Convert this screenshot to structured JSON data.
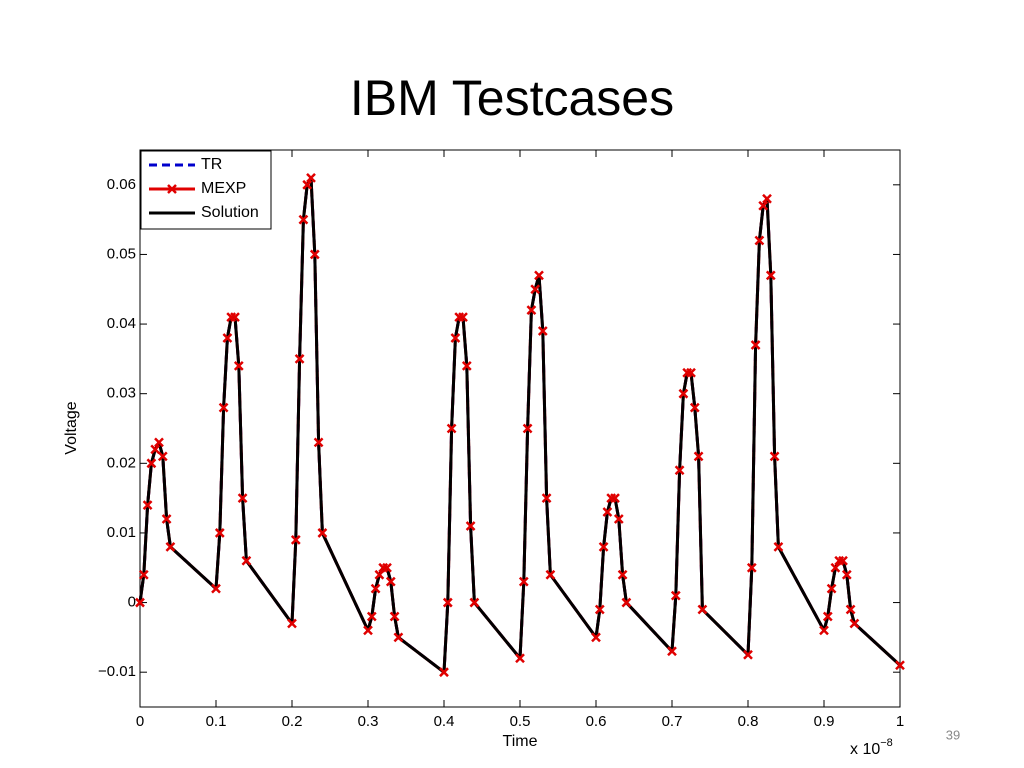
{
  "slide": {
    "title": "IBM Testcases",
    "page_number": 39
  },
  "chart_data": {
    "type": "line",
    "xlabel": "Time",
    "ylabel": "Voltage",
    "x_multiplier": {
      "base": "x 10",
      "exponent": "−8"
    },
    "x": [
      0,
      0.005,
      0.01,
      0.015,
      0.02,
      0.025,
      0.03,
      0.035,
      0.04,
      0.1,
      0.105,
      0.11,
      0.115,
      0.12,
      0.125,
      0.13,
      0.135,
      0.14,
      0.2,
      0.205,
      0.21,
      0.215,
      0.22,
      0.225,
      0.23,
      0.235,
      0.24,
      0.3,
      0.305,
      0.31,
      0.315,
      0.32,
      0.325,
      0.33,
      0.335,
      0.34,
      0.4,
      0.405,
      0.41,
      0.415,
      0.42,
      0.425,
      0.43,
      0.435,
      0.44,
      0.5,
      0.505,
      0.51,
      0.515,
      0.52,
      0.525,
      0.53,
      0.535,
      0.54,
      0.6,
      0.605,
      0.61,
      0.615,
      0.62,
      0.625,
      0.63,
      0.635,
      0.64,
      0.7,
      0.705,
      0.71,
      0.715,
      0.72,
      0.725,
      0.73,
      0.735,
      0.74,
      0.8,
      0.805,
      0.81,
      0.815,
      0.82,
      0.825,
      0.83,
      0.835,
      0.84,
      0.9,
      0.905,
      0.91,
      0.915,
      0.92,
      0.925,
      0.93,
      0.935,
      0.94,
      1.0
    ],
    "series": [
      {
        "name": "TR",
        "color": "#0000cc",
        "dash": true,
        "marker": false,
        "values": [
          0,
          0.004,
          0.014,
          0.02,
          0.022,
          0.023,
          0.021,
          0.012,
          0.008,
          0.002,
          0.01,
          0.028,
          0.038,
          0.041,
          0.041,
          0.034,
          0.015,
          0.006,
          -0.003,
          0.009,
          0.035,
          0.055,
          0.06,
          0.061,
          0.05,
          0.023,
          0.01,
          -0.004,
          -0.002,
          0.002,
          0.004,
          0.005,
          0.005,
          0.003,
          -0.002,
          -0.005,
          -0.01,
          0,
          0.025,
          0.038,
          0.041,
          0.041,
          0.034,
          0.011,
          0,
          -0.008,
          0.003,
          0.025,
          0.042,
          0.045,
          0.047,
          0.039,
          0.015,
          0.004,
          -0.005,
          -0.001,
          0.008,
          0.013,
          0.015,
          0.015,
          0.012,
          0.004,
          0,
          -0.007,
          0.001,
          0.019,
          0.03,
          0.033,
          0.033,
          0.028,
          0.021,
          -0.001,
          -0.0075,
          0.005,
          0.037,
          0.052,
          0.057,
          0.058,
          0.047,
          0.021,
          0.008,
          -0.004,
          -0.002,
          0.002,
          0.005,
          0.006,
          0.006,
          0.004,
          -0.001,
          -0.003,
          -0.009
        ]
      },
      {
        "name": "MEXP",
        "color": "#e00000",
        "dash": false,
        "marker": true,
        "values": [
          0,
          0.004,
          0.014,
          0.02,
          0.022,
          0.023,
          0.021,
          0.012,
          0.008,
          0.002,
          0.01,
          0.028,
          0.038,
          0.041,
          0.041,
          0.034,
          0.015,
          0.006,
          -0.003,
          0.009,
          0.035,
          0.055,
          0.06,
          0.061,
          0.05,
          0.023,
          0.01,
          -0.004,
          -0.002,
          0.002,
          0.004,
          0.005,
          0.005,
          0.003,
          -0.002,
          -0.005,
          -0.01,
          0,
          0.025,
          0.038,
          0.041,
          0.041,
          0.034,
          0.011,
          0,
          -0.008,
          0.003,
          0.025,
          0.042,
          0.045,
          0.047,
          0.039,
          0.015,
          0.004,
          -0.005,
          -0.001,
          0.008,
          0.013,
          0.015,
          0.015,
          0.012,
          0.004,
          0,
          -0.007,
          0.001,
          0.019,
          0.03,
          0.033,
          0.033,
          0.028,
          0.021,
          -0.001,
          -0.0075,
          0.005,
          0.037,
          0.052,
          0.057,
          0.058,
          0.047,
          0.021,
          0.008,
          -0.004,
          -0.002,
          0.002,
          0.005,
          0.006,
          0.006,
          0.004,
          -0.001,
          -0.003,
          -0.009
        ]
      },
      {
        "name": "Solution",
        "color": "#000000",
        "dash": false,
        "marker": false,
        "values": [
          0,
          0.004,
          0.014,
          0.02,
          0.022,
          0.023,
          0.021,
          0.012,
          0.008,
          0.002,
          0.01,
          0.028,
          0.038,
          0.041,
          0.041,
          0.034,
          0.015,
          0.006,
          -0.003,
          0.009,
          0.035,
          0.055,
          0.06,
          0.061,
          0.05,
          0.023,
          0.01,
          -0.004,
          -0.002,
          0.002,
          0.004,
          0.005,
          0.005,
          0.003,
          -0.002,
          -0.005,
          -0.01,
          0,
          0.025,
          0.038,
          0.041,
          0.041,
          0.034,
          0.011,
          0,
          -0.008,
          0.003,
          0.025,
          0.042,
          0.045,
          0.047,
          0.039,
          0.015,
          0.004,
          -0.005,
          -0.001,
          0.008,
          0.013,
          0.015,
          0.015,
          0.012,
          0.004,
          0,
          -0.007,
          0.001,
          0.019,
          0.03,
          0.033,
          0.033,
          0.028,
          0.021,
          -0.001,
          -0.0075,
          0.005,
          0.037,
          0.052,
          0.057,
          0.058,
          0.047,
          0.021,
          0.008,
          -0.004,
          -0.002,
          0.002,
          0.005,
          0.006,
          0.006,
          0.004,
          -0.001,
          -0.003,
          -0.009
        ]
      }
    ],
    "xlim": [
      0,
      1
    ],
    "xticks": [
      0,
      0.1,
      0.2,
      0.3,
      0.4,
      0.5,
      0.6,
      0.7,
      0.8,
      0.9,
      1
    ],
    "ylim": [
      -0.015,
      0.065
    ],
    "yticks": [
      {
        "value": -0.01,
        "label": "−0.01"
      },
      0,
      0.01,
      0.02,
      0.03,
      0.04,
      0.05,
      0.06
    ],
    "grid": false,
    "legend": "upper left"
  }
}
